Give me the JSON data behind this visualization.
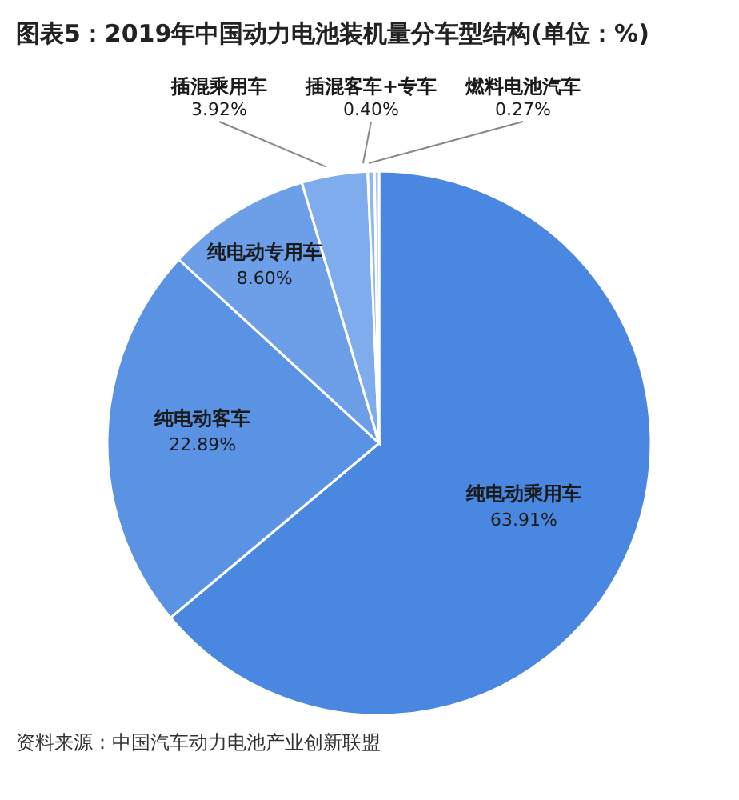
{
  "chart_data": {
    "type": "pie",
    "title": "图表5：2019年中国动力电池装机量分车型结构(单位：%)",
    "categories": [
      "纯电动乘用车",
      "纯电动客车",
      "纯电动专用车",
      "插混乘用车",
      "插混客车+专车",
      "燃料电池汽车"
    ],
    "values": [
      63.91,
      22.89,
      8.6,
      3.92,
      0.4,
      0.27
    ],
    "value_labels": [
      "63.91%",
      "22.89%",
      "8.60%",
      "3.92%",
      "0.40%",
      "0.27%"
    ],
    "colors": [
      "#4a87e0",
      "#5a92e4",
      "#6c9fe8",
      "#7eacec",
      "#8fb8ef",
      "#a0c3f2"
    ],
    "legend": false,
    "annotations": [
      "资料来源：中国汽车动力电池产业创新联盟"
    ]
  }
}
